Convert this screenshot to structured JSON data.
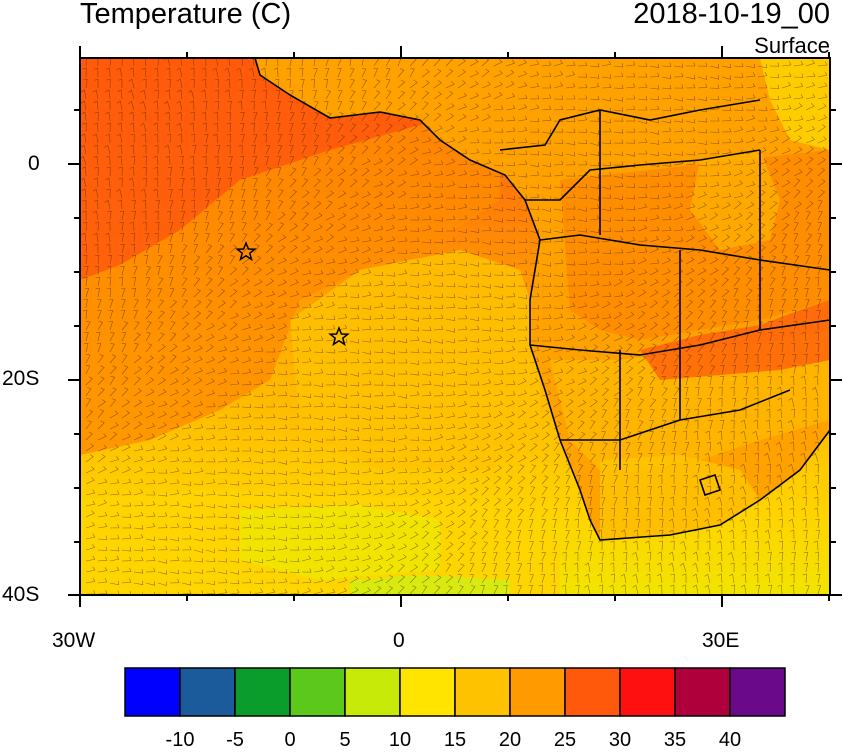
{
  "title": "Temperature (C)",
  "datetime": "2018-10-19_00",
  "level": "Surface",
  "axes": {
    "y_labels": [
      "0",
      "20S",
      "40S"
    ],
    "x_labels": [
      "30W",
      "0",
      "30E"
    ]
  },
  "colorbar": {
    "colors": [
      "#0000ff",
      "#1c5b9b",
      "#0a9d2c",
      "#5cc81c",
      "#c8ea08",
      "#ffe400",
      "#ffc200",
      "#ff9a00",
      "#ff5a0c",
      "#ff1010",
      "#b0003c",
      "#6a0a8a"
    ],
    "labels": [
      "-10",
      "-5",
      "0",
      "5",
      "10",
      "15",
      "20",
      "25",
      "30",
      "35",
      "40"
    ]
  },
  "markers": [
    "star-marker-1",
    "star-marker-2"
  ]
}
